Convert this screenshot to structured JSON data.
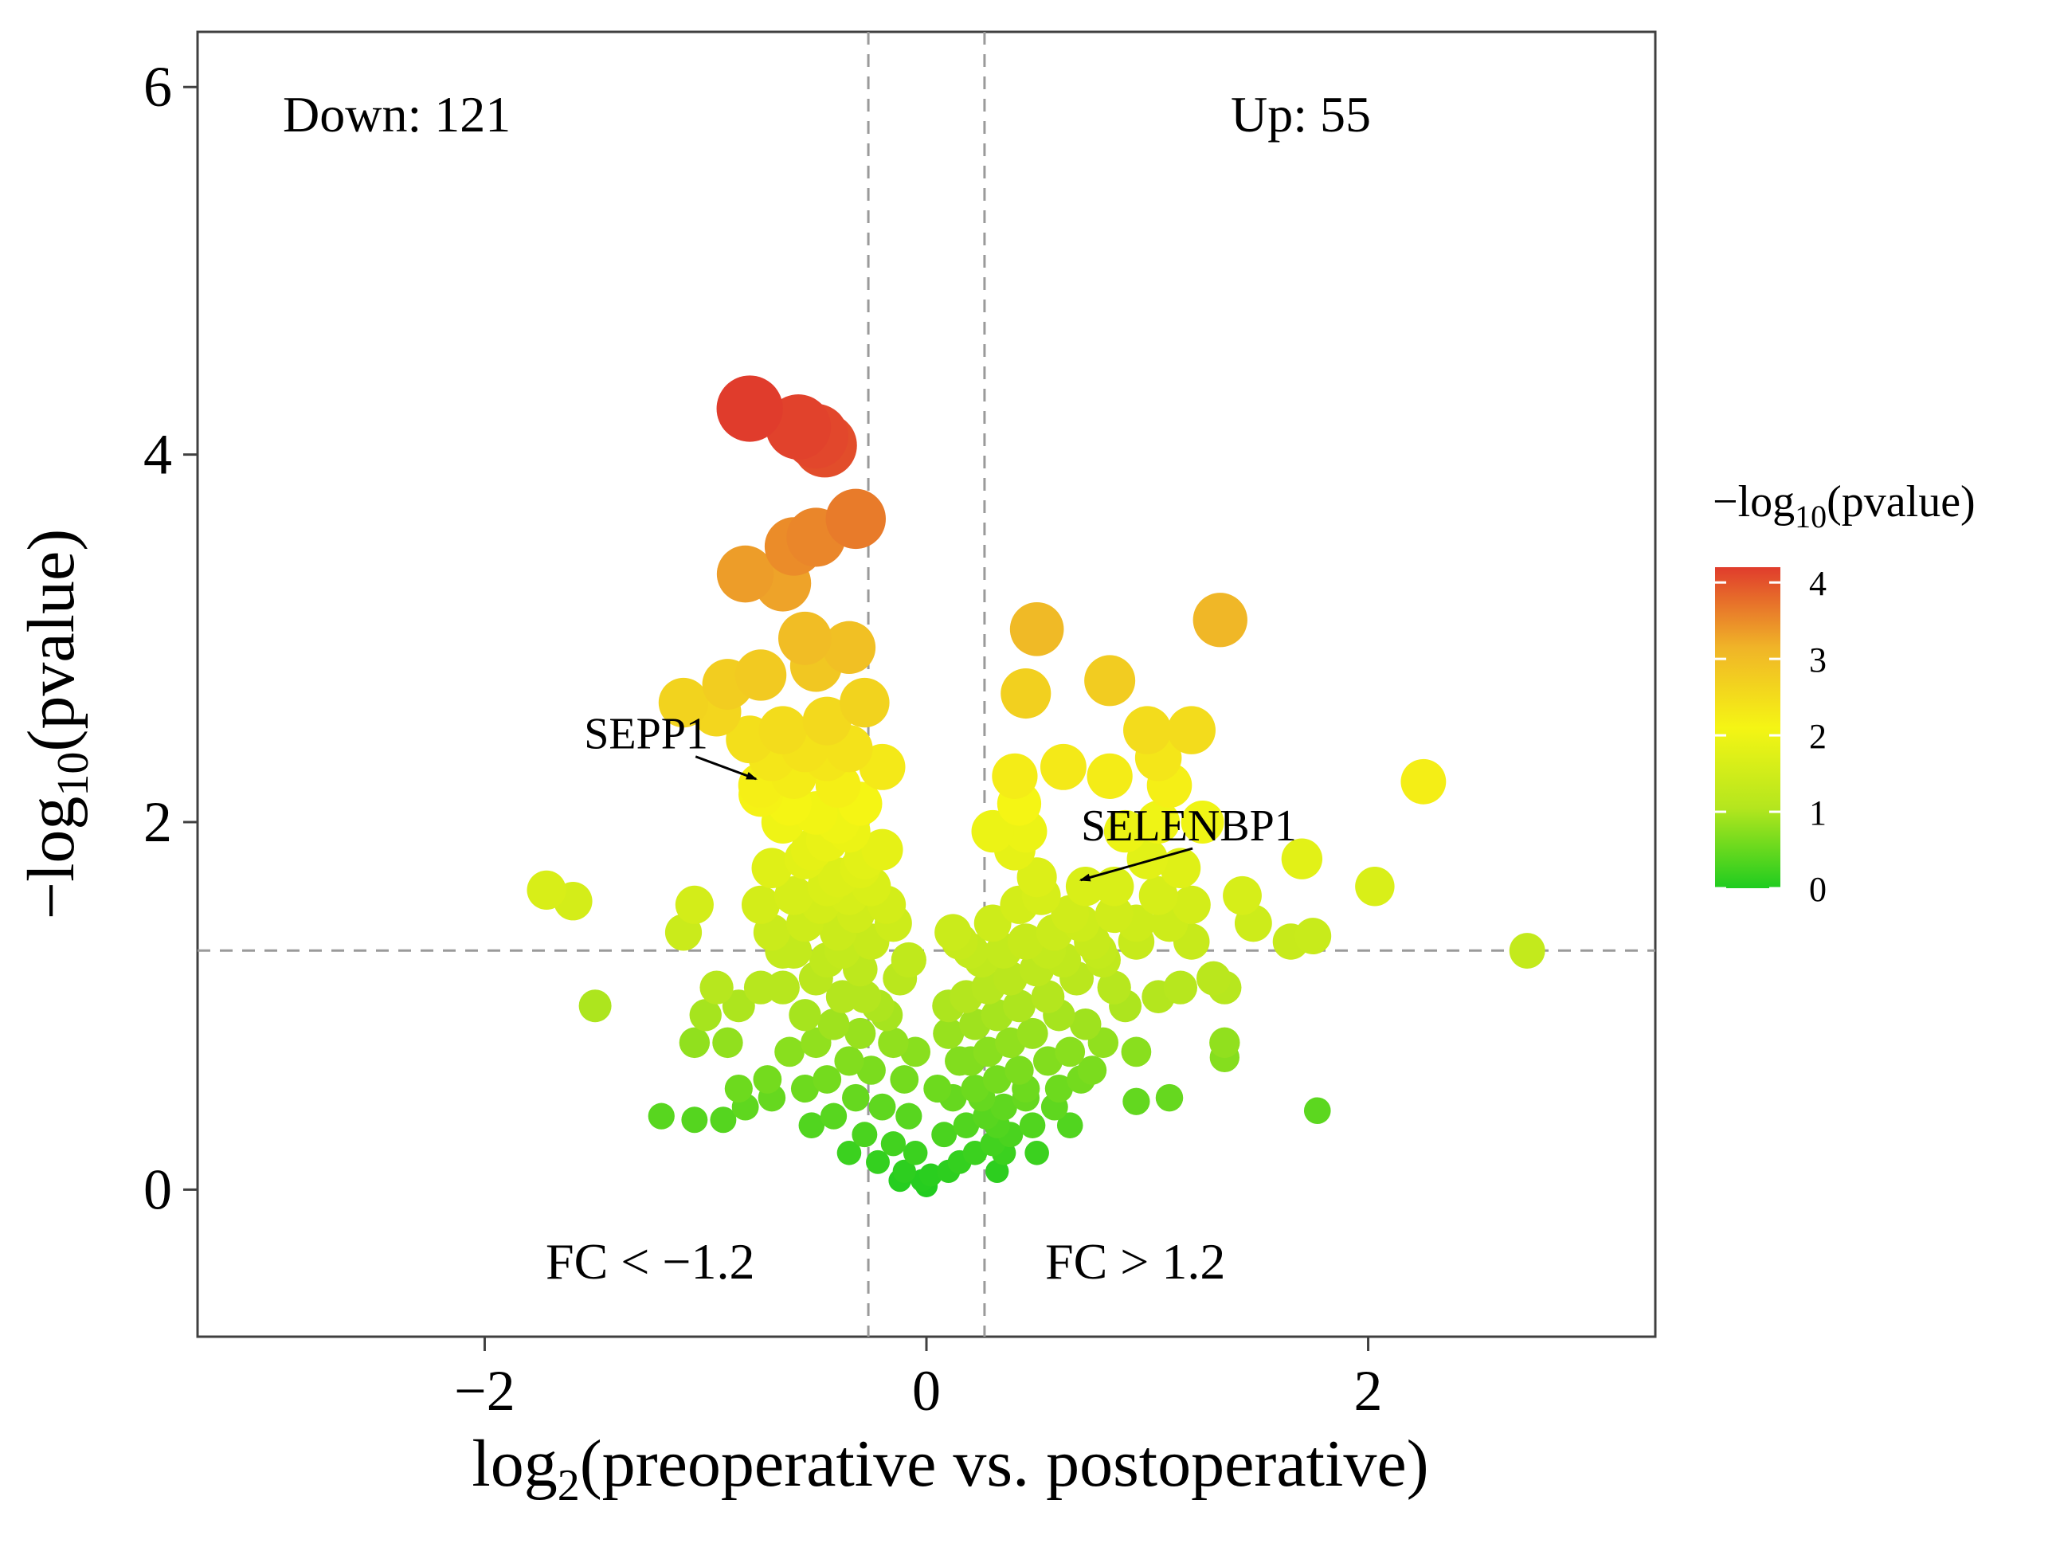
{
  "chart_data": {
    "type": "scatter",
    "title": "",
    "xlabel": {
      "base": "log",
      "sub": "2",
      "rest": "(preoperative vs. postoperative)"
    },
    "ylabel": {
      "base": "−log",
      "sub": "10",
      "rest": "(pvalue)"
    },
    "xlim": [
      -3.3,
      3.3
    ],
    "ylim": [
      -0.8,
      6.3
    ],
    "x_ticks": [
      {
        "value": -2,
        "label": "−2"
      },
      {
        "value": 0,
        "label": "0"
      },
      {
        "value": 2,
        "label": "2"
      }
    ],
    "y_ticks": [
      {
        "value": 0,
        "label": "0"
      },
      {
        "value": 2,
        "label": "2"
      },
      {
        "value": 4,
        "label": "4"
      },
      {
        "value": 6,
        "label": "6"
      }
    ],
    "grid": false,
    "thresholds": {
      "fc_log2": 0.263,
      "pvalue_neglog10": 1.301
    },
    "annotations": {
      "down": "Down: 121",
      "up": "Up: 55",
      "fc_low": "FC < −1.2",
      "fc_high": "FC > 1.2"
    },
    "labeled_genes": [
      {
        "name": "SEPP1",
        "x": -0.75,
        "y": 2.2,
        "label_x": -1.55,
        "label_y": 2.4
      },
      {
        "name": "SELENBP1",
        "x": 0.72,
        "y": 1.65,
        "label_x": 0.7,
        "label_y": 1.9
      }
    ],
    "legend": {
      "title": {
        "base": "−log",
        "sub": "10",
        "rest": "(pvalue)"
      },
      "position": "right",
      "min": 0,
      "max": 4.2,
      "ticks": [
        0,
        1,
        2,
        3,
        4
      ],
      "colors": [
        "#1fcc1f",
        "#b4e61e",
        "#f5f514",
        "#f0b428",
        "#e03c2c"
      ]
    },
    "points": [
      [
        -0.8,
        4.25
      ],
      [
        -0.58,
        4.15
      ],
      [
        -0.5,
        4.1
      ],
      [
        -0.46,
        4.05
      ],
      [
        -0.32,
        3.65
      ],
      [
        -0.5,
        3.55
      ],
      [
        -0.6,
        3.5
      ],
      [
        -0.82,
        3.35
      ],
      [
        -0.65,
        3.3
      ],
      [
        -0.55,
        3.0
      ],
      [
        -0.35,
        2.95
      ],
      [
        -0.5,
        2.85
      ],
      [
        -0.75,
        2.8
      ],
      [
        -0.9,
        2.75
      ],
      [
        -1.1,
        2.65
      ],
      [
        -0.95,
        2.6
      ],
      [
        -0.28,
        2.65
      ],
      [
        -0.45,
        2.55
      ],
      [
        -0.65,
        2.5
      ],
      [
        -0.8,
        2.45
      ],
      [
        -0.55,
        2.4
      ],
      [
        -0.35,
        2.4
      ],
      [
        -0.7,
        2.35
      ],
      [
        -0.45,
        2.35
      ],
      [
        -0.2,
        2.3
      ],
      [
        -0.6,
        2.25
      ],
      [
        -0.4,
        2.2
      ],
      [
        -0.75,
        2.15
      ],
      [
        -0.3,
        2.1
      ],
      [
        -0.5,
        2.05
      ],
      [
        -0.65,
        2.0
      ],
      [
        -0.35,
        1.95
      ],
      [
        -0.45,
        1.9
      ],
      [
        -0.2,
        1.85
      ],
      [
        -0.55,
        1.8
      ],
      [
        -0.7,
        1.75
      ],
      [
        -0.4,
        1.7
      ],
      [
        -0.25,
        1.65
      ],
      [
        -0.6,
        1.6
      ],
      [
        -0.48,
        1.55
      ],
      [
        -0.32,
        1.5
      ],
      [
        -0.15,
        1.45
      ],
      [
        -0.55,
        1.45
      ],
      [
        -0.7,
        1.4
      ],
      [
        -0.4,
        1.4
      ],
      [
        -0.25,
        1.35
      ],
      [
        -0.6,
        1.3
      ],
      [
        -0.45,
        1.25
      ],
      [
        -0.3,
        1.2
      ],
      [
        -0.12,
        1.15
      ],
      [
        -0.5,
        1.15
      ],
      [
        -0.65,
        1.1
      ],
      [
        -0.38,
        1.05
      ],
      [
        -0.22,
        1.0
      ],
      [
        -0.55,
        0.95
      ],
      [
        -0.42,
        0.9
      ],
      [
        -0.3,
        0.85
      ],
      [
        -0.15,
        0.8
      ],
      [
        -0.5,
        0.8
      ],
      [
        -0.62,
        0.75
      ],
      [
        -0.35,
        0.7
      ],
      [
        -0.25,
        0.65
      ],
      [
        -0.45,
        0.6
      ],
      [
        -0.1,
        0.6
      ],
      [
        -0.55,
        0.55
      ],
      [
        -0.32,
        0.5
      ],
      [
        -0.2,
        0.45
      ],
      [
        -0.42,
        0.4
      ],
      [
        -0.08,
        0.4
      ],
      [
        -0.52,
        0.35
      ],
      [
        -0.28,
        0.3
      ],
      [
        -0.15,
        0.25
      ],
      [
        -0.35,
        0.2
      ],
      [
        -0.05,
        0.2
      ],
      [
        -0.22,
        0.15
      ],
      [
        -0.1,
        0.1
      ],
      [
        -0.02,
        0.05
      ],
      [
        -0.12,
        0.05
      ],
      [
        0.0,
        0.02
      ],
      [
        -0.35,
        1.6
      ],
      [
        -0.28,
        1.8
      ],
      [
        -0.18,
        1.55
      ],
      [
        -0.38,
        1.3
      ],
      [
        -0.08,
        1.25
      ],
      [
        -0.18,
        0.95
      ],
      [
        -0.05,
        0.75
      ],
      [
        -0.28,
        1.05
      ],
      [
        -0.45,
        1.65
      ],
      [
        -0.52,
        1.85
      ],
      [
        -0.62,
        2.1
      ],
      [
        -0.4,
        2.0
      ],
      [
        -0.3,
        1.75
      ],
      [
        -0.65,
        1.3
      ],
      [
        -0.75,
        1.1
      ],
      [
        -0.75,
        1.55
      ],
      [
        -0.85,
        1.0
      ],
      [
        -0.95,
        1.1
      ],
      [
        -1.05,
        1.55
      ],
      [
        -1.1,
        1.4
      ],
      [
        -1.0,
        0.95
      ],
      [
        -1.05,
        0.8
      ],
      [
        -0.9,
        0.8
      ],
      [
        -0.85,
        0.55
      ],
      [
        -0.82,
        0.45
      ],
      [
        -0.72,
        0.6
      ],
      [
        -0.92,
        0.38
      ],
      [
        -1.2,
        0.4
      ],
      [
        -1.05,
        0.38
      ],
      [
        -0.7,
        0.5
      ],
      [
        -1.72,
        1.63
      ],
      [
        -1.6,
        1.57
      ],
      [
        -1.5,
        1.0
      ],
      [
        0.02,
        0.08
      ],
      [
        0.1,
        0.1
      ],
      [
        0.15,
        0.15
      ],
      [
        0.22,
        0.2
      ],
      [
        0.3,
        0.25
      ],
      [
        0.38,
        0.3
      ],
      [
        0.08,
        0.3
      ],
      [
        0.18,
        0.35
      ],
      [
        0.27,
        0.4
      ],
      [
        0.35,
        0.45
      ],
      [
        0.45,
        0.5
      ],
      [
        0.12,
        0.5
      ],
      [
        0.22,
        0.55
      ],
      [
        0.32,
        0.6
      ],
      [
        0.42,
        0.65
      ],
      [
        0.05,
        0.55
      ],
      [
        0.15,
        0.7
      ],
      [
        0.28,
        0.75
      ],
      [
        0.38,
        0.8
      ],
      [
        0.48,
        0.85
      ],
      [
        0.1,
        0.85
      ],
      [
        0.22,
        0.9
      ],
      [
        0.32,
        0.95
      ],
      [
        0.42,
        1.0
      ],
      [
        0.55,
        1.05
      ],
      [
        0.18,
        1.05
      ],
      [
        0.28,
        1.1
      ],
      [
        0.38,
        1.15
      ],
      [
        0.5,
        1.2
      ],
      [
        0.62,
        1.25
      ],
      [
        0.25,
        1.25
      ],
      [
        0.35,
        1.3
      ],
      [
        0.45,
        1.35
      ],
      [
        0.58,
        1.4
      ],
      [
        0.7,
        1.45
      ],
      [
        0.15,
        1.35
      ],
      [
        0.3,
        1.45
      ],
      [
        0.42,
        1.55
      ],
      [
        0.52,
        1.6
      ],
      [
        0.65,
        1.5
      ],
      [
        0.75,
        1.35
      ],
      [
        0.68,
        1.15
      ],
      [
        0.8,
        1.25
      ],
      [
        0.85,
        1.1
      ],
      [
        0.55,
        1.3
      ],
      [
        0.6,
        0.95
      ],
      [
        0.72,
        0.9
      ],
      [
        0.8,
        0.8
      ],
      [
        0.65,
        0.75
      ],
      [
        0.55,
        0.7
      ],
      [
        0.45,
        0.55
      ],
      [
        0.58,
        0.45
      ],
      [
        0.7,
        0.6
      ],
      [
        0.48,
        0.35
      ],
      [
        0.35,
        0.2
      ],
      [
        0.5,
        0.2
      ],
      [
        0.32,
        0.1
      ],
      [
        0.25,
        0.5
      ],
      [
        0.2,
        0.7
      ],
      [
        0.1,
        1.0
      ],
      [
        0.4,
        2.25
      ],
      [
        0.42,
        2.1
      ],
      [
        0.45,
        1.95
      ],
      [
        0.4,
        1.85
      ],
      [
        0.5,
        1.7
      ],
      [
        0.45,
        2.7
      ],
      [
        0.5,
        3.05
      ],
      [
        0.62,
        2.3
      ],
      [
        0.83,
        2.25
      ],
      [
        0.83,
        2.77
      ],
      [
        1.0,
        2.5
      ],
      [
        1.2,
        2.5
      ],
      [
        1.05,
        2.35
      ],
      [
        1.1,
        2.2
      ],
      [
        1.05,
        2.0
      ],
      [
        1.25,
        2.0
      ],
      [
        0.9,
        1.95
      ],
      [
        1.0,
        1.8
      ],
      [
        1.15,
        1.75
      ],
      [
        0.85,
        1.65
      ],
      [
        1.05,
        1.6
      ],
      [
        1.2,
        1.55
      ],
      [
        0.85,
        1.5
      ],
      [
        0.95,
        1.45
      ],
      [
        1.1,
        1.45
      ],
      [
        1.2,
        1.35
      ],
      [
        0.95,
        1.35
      ],
      [
        0.78,
        1.3
      ],
      [
        1.3,
        1.15
      ],
      [
        1.15,
        1.1
      ],
      [
        1.35,
        1.1
      ],
      [
        1.05,
        1.05
      ],
      [
        0.9,
        1.0
      ],
      [
        0.95,
        0.75
      ],
      [
        1.35,
        0.8
      ],
      [
        1.35,
        0.72
      ],
      [
        0.75,
        0.65
      ],
      [
        0.95,
        0.48
      ],
      [
        1.1,
        0.5
      ],
      [
        0.3,
        1.95
      ],
      [
        0.12,
        1.4
      ],
      [
        0.2,
        1.3
      ],
      [
        0.6,
        0.55
      ],
      [
        0.65,
        0.35
      ],
      [
        0.32,
        0.35
      ],
      [
        1.33,
        3.1
      ],
      [
        1.43,
        1.6
      ],
      [
        1.48,
        1.45
      ],
      [
        1.7,
        1.8
      ],
      [
        1.65,
        1.35
      ],
      [
        1.75,
        1.38
      ],
      [
        2.03,
        1.65
      ],
      [
        2.25,
        2.22
      ],
      [
        2.72,
        1.3
      ],
      [
        1.77,
        0.43
      ],
      [
        0.72,
        1.65
      ],
      [
        -0.75,
        2.2
      ]
    ]
  }
}
